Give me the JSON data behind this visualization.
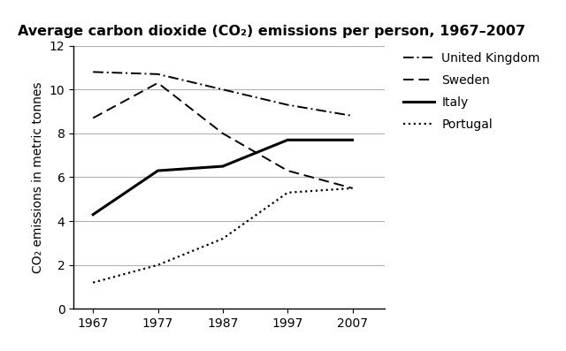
{
  "title": "Average carbon dioxide (CO₂) emissions per person, 1967–2007",
  "ylabel": "CO₂ emissions in metric tonnes",
  "years": [
    1967,
    1977,
    1987,
    1997,
    2007
  ],
  "united_kingdom": [
    10.8,
    10.7,
    10.0,
    9.3,
    8.8
  ],
  "sweden": [
    8.7,
    10.3,
    8.0,
    6.3,
    5.5
  ],
  "italy": [
    4.3,
    6.3,
    6.5,
    7.7,
    7.7
  ],
  "portugal": [
    1.2,
    2.0,
    3.2,
    5.3,
    5.5
  ],
  "portugal_years": [
    1967,
    1977,
    1987,
    1997,
    2007
  ],
  "ylim": [
    0,
    12
  ],
  "xlim": [
    1964,
    2012
  ],
  "yticks": [
    0,
    2,
    4,
    6,
    8,
    10,
    12
  ],
  "xticks": [
    1967,
    1977,
    1987,
    1997,
    2007
  ],
  "line_color": "#000000",
  "bg_color": "#ffffff",
  "grid_color": "#b0b0b0",
  "legend_labels": [
    "United Kingdom",
    "Sweden",
    "Italy",
    "Portugal"
  ],
  "title_fontsize": 11.5,
  "label_fontsize": 10,
  "tick_fontsize": 10,
  "legend_fontsize": 10,
  "uk_lw": 1.4,
  "sweden_lw": 1.4,
  "italy_lw": 2.2,
  "portugal_lw": 1.6
}
